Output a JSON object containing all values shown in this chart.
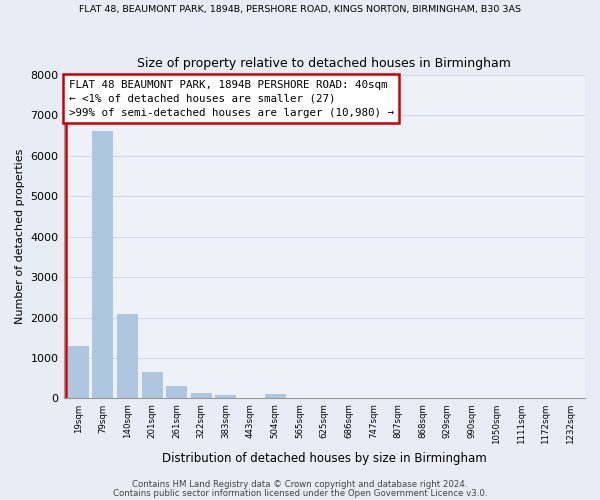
{
  "title_top": "FLAT 48, BEAUMONT PARK, 1894B, PERSHORE ROAD, KINGS NORTON, BIRMINGHAM, B30 3AS",
  "title_main": "Size of property relative to detached houses in Birmingham",
  "xlabel": "Distribution of detached houses by size in Birmingham",
  "ylabel": "Number of detached properties",
  "bar_labels": [
    "19sqm",
    "79sqm",
    "140sqm",
    "201sqm",
    "261sqm",
    "322sqm",
    "383sqm",
    "443sqm",
    "504sqm",
    "565sqm",
    "625sqm",
    "686sqm",
    "747sqm",
    "807sqm",
    "868sqm",
    "929sqm",
    "990sqm",
    "1050sqm",
    "1111sqm",
    "1172sqm",
    "1232sqm"
  ],
  "bar_values": [
    1300,
    6600,
    2080,
    650,
    300,
    130,
    80,
    0,
    110,
    0,
    0,
    0,
    0,
    0,
    0,
    0,
    0,
    0,
    0,
    0,
    0
  ],
  "bar_color": "#aec6df",
  "highlight_bar_color": "#cc0000",
  "ylim": [
    0,
    8000
  ],
  "yticks": [
    0,
    1000,
    2000,
    3000,
    4000,
    5000,
    6000,
    7000,
    8000
  ],
  "ann_line1": "FLAT 48 BEAUMONT PARK, 1894B PERSHORE ROAD: 40sqm",
  "ann_line2": "← <1% of detached houses are smaller (27)",
  "ann_line3": ">99% of semi-detached houses are larger (10,980) →",
  "annotation_box_color": "#cc0000",
  "footer_line1": "Contains HM Land Registry data © Crown copyright and database right 2024.",
  "footer_line2": "Contains public sector information licensed under the Open Government Licence v3.0.",
  "grid_color": "#cdd8e8",
  "background_color": "#e8edf5",
  "plot_bg_color": "#eef2f8"
}
